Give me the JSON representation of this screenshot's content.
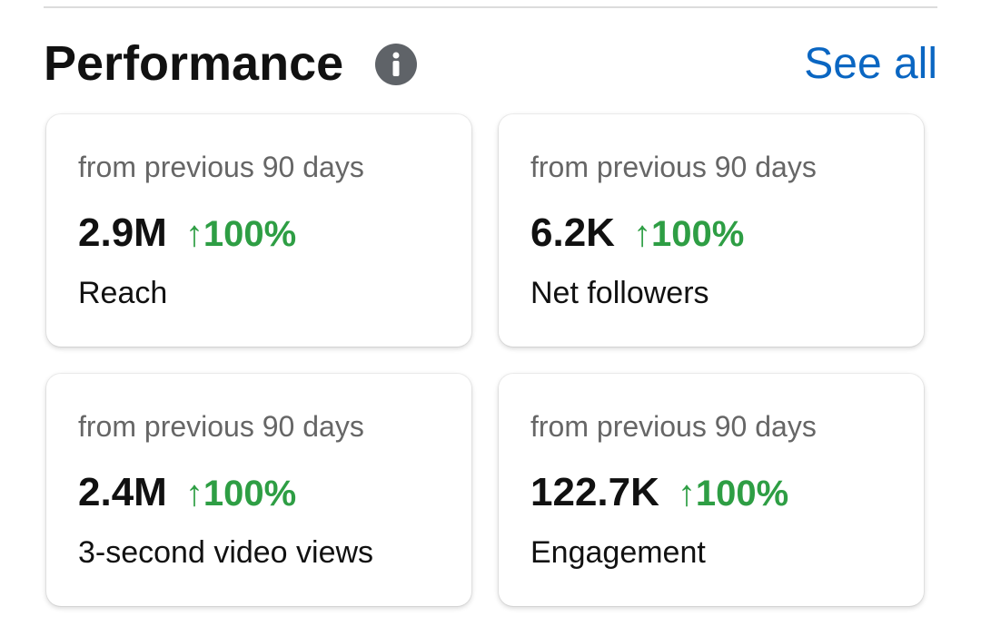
{
  "header": {
    "title": "Performance",
    "link": "See all"
  },
  "cards": [
    {
      "period": "from previous 90 days",
      "value": "2.9M",
      "change": "↑100%",
      "label": "Reach"
    },
    {
      "period": "from previous 90 days",
      "value": "6.2K",
      "change": "↑100%",
      "label": "Net followers"
    },
    {
      "period": "from previous 90 days",
      "value": "2.4M",
      "change": "↑100%",
      "label": "3-second video views"
    },
    {
      "period": "from previous 90 days",
      "value": "122.7K",
      "change": "↑100%",
      "label": "Engagement"
    }
  ]
}
